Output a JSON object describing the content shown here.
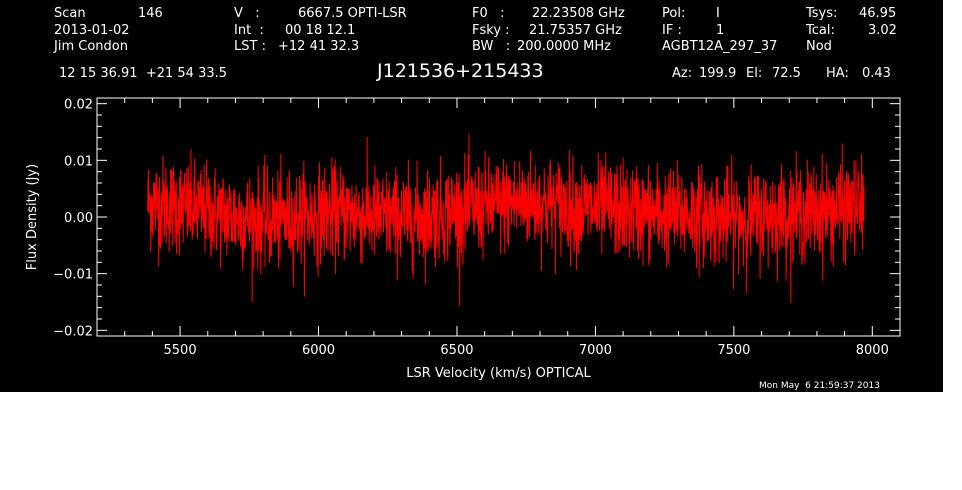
{
  "header": {
    "row1": {
      "scan_label": "Scan",
      "scan_value": "146",
      "v_label": "V   :",
      "v_value": "6667.5 OPTI-LSR",
      "f0_label": "F0   :",
      "f0_value": "22.23508 GHz",
      "pol_label": "Pol:",
      "pol_value": "I",
      "tsys_label": "Tsys:",
      "tsys_value": "46.95"
    },
    "row2": {
      "date": "2013-01-02",
      "int_label": "Int  :",
      "int_value": "00 18 12.1",
      "fsky_label": "Fsky :",
      "fsky_value": "21.75357 GHz",
      "if_label": "IF :",
      "if_value": "1",
      "tcal_label": "Tcal:",
      "tcal_value": "3.02"
    },
    "row3": {
      "observer": "Jim Condon",
      "lst_label": "LST :",
      "lst_value": "+12 41 32.3",
      "bw_label": "BW   :",
      "bw_value": "200.0000 MHz",
      "project": "AGBT12A_297_37",
      "mode": "Nod"
    },
    "coords": "12 15 36.91  +21 54 33.5",
    "source": "J121536+215433",
    "az_label": "Az:",
    "az_value": "199.9",
    "el_label": "El:",
    "el_value": "72.5",
    "ha_label": "HA:",
    "ha_value": "0.43"
  },
  "timestamp": "Mon May  6 21:59:37 2013",
  "colors": {
    "background": "#000000",
    "axes": "#ffffff",
    "series": "#ff0000"
  },
  "chart_data": {
    "type": "line",
    "xlabel": "LSR Velocity (km/s) OPTICAL",
    "ylabel": "Flux Density (Jy)",
    "xlim": [
      5200,
      8100
    ],
    "ylim": [
      -0.021,
      0.021
    ],
    "x_ticks": [
      5500,
      6000,
      6500,
      7000,
      7500,
      8000
    ],
    "x_tick_labels": [
      "5500",
      "6000",
      "6500",
      "7000",
      "7500",
      "8000"
    ],
    "y_ticks": [
      -0.02,
      -0.01,
      0.0,
      0.01,
      0.02
    ],
    "y_tick_labels": [
      "−0.02",
      "−0.01",
      "0.00",
      "0.01",
      "0.02"
    ],
    "grid": false,
    "series": [
      {
        "x_range": [
          5383,
          7970
        ],
        "baseline": [
          [
            5383,
            0.0025
          ],
          [
            5450,
            0.0022
          ],
          [
            5550,
            0.0015
          ],
          [
            5650,
            0.0005
          ],
          [
            5750,
            -0.0003
          ],
          [
            5850,
            -0.0006
          ],
          [
            5950,
            0.0002
          ],
          [
            6050,
            0.0008
          ],
          [
            6150,
            0.0005
          ],
          [
            6250,
            0.0
          ],
          [
            6350,
            -0.0002
          ],
          [
            6450,
            0.0008
          ],
          [
            6550,
            0.0015
          ],
          [
            6650,
            0.0022
          ],
          [
            6750,
            0.0028
          ],
          [
            6850,
            0.0022
          ],
          [
            6950,
            0.0015
          ],
          [
            7050,
            0.0015
          ],
          [
            7150,
            0.0008
          ],
          [
            7250,
            0.0005
          ],
          [
            7350,
            0.0005
          ],
          [
            7450,
            0.0
          ],
          [
            7550,
            -0.0002
          ],
          [
            7650,
            0.0005
          ],
          [
            7750,
            0.0008
          ],
          [
            7850,
            0.0012
          ],
          [
            7970,
            0.0018
          ]
        ],
        "noise_rms": 0.0042,
        "peak_max": 0.0155,
        "peak_min": -0.0165
      }
    ]
  }
}
